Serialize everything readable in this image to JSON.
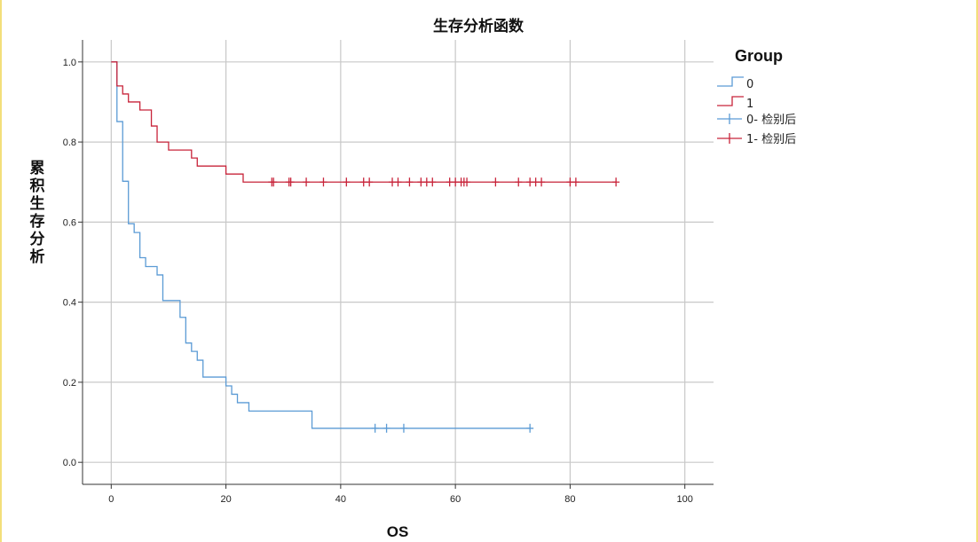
{
  "chart_data": {
    "type": "line",
    "title": "生存分析函数",
    "xlabel": "OS",
    "ylabel": "累积生存分析",
    "xlim": [
      -5,
      105
    ],
    "ylim": [
      -0.055,
      1.055
    ],
    "xticks": [
      0,
      20,
      40,
      60,
      80,
      100
    ],
    "yticks": [
      0.0,
      0.2,
      0.4,
      0.6,
      0.8,
      1.0
    ],
    "ytick_labels": [
      "0.0",
      "0.2",
      "0.4",
      "0.6",
      "0.8",
      "1.0"
    ],
    "grid": true,
    "legend": {
      "title": "Group",
      "placement": "right",
      "entries": [
        "0",
        "1",
        "0- 检别后",
        "1- 检别后"
      ]
    },
    "series": [
      {
        "name": "0",
        "color": "#5b9bd5",
        "steps": [
          [
            0,
            1.0
          ],
          [
            1,
            0.851
          ],
          [
            2,
            0.702
          ],
          [
            3,
            0.596
          ],
          [
            4,
            0.574
          ],
          [
            5,
            0.511
          ],
          [
            6,
            0.489
          ],
          [
            8,
            0.468
          ],
          [
            9,
            0.404
          ],
          [
            12,
            0.362
          ],
          [
            13,
            0.298
          ],
          [
            14,
            0.277
          ],
          [
            15,
            0.255
          ],
          [
            16,
            0.213
          ],
          [
            20,
            0.191
          ],
          [
            21,
            0.17
          ],
          [
            22,
            0.149
          ],
          [
            24,
            0.128
          ],
          [
            35,
            0.085
          ],
          [
            73,
            0.085
          ]
        ],
        "censored": [
          46,
          48,
          51,
          73
        ]
      },
      {
        "name": "1",
        "color": "#c8243a",
        "steps": [
          [
            0,
            1.0
          ],
          [
            1,
            0.94
          ],
          [
            2,
            0.92
          ],
          [
            3,
            0.9
          ],
          [
            5,
            0.88
          ],
          [
            7,
            0.84
          ],
          [
            8,
            0.8
          ],
          [
            10,
            0.78
          ],
          [
            14,
            0.76
          ],
          [
            15,
            0.74
          ],
          [
            20,
            0.72
          ],
          [
            23,
            0.7
          ],
          [
            88,
            0.7
          ]
        ],
        "censored": [
          28,
          28.3,
          31,
          31.3,
          34,
          37,
          41,
          44,
          45,
          49,
          50,
          52,
          54,
          55,
          56,
          59,
          60,
          61,
          61.5,
          62,
          67,
          71,
          73,
          74,
          75,
          80,
          81,
          88
        ]
      }
    ]
  }
}
